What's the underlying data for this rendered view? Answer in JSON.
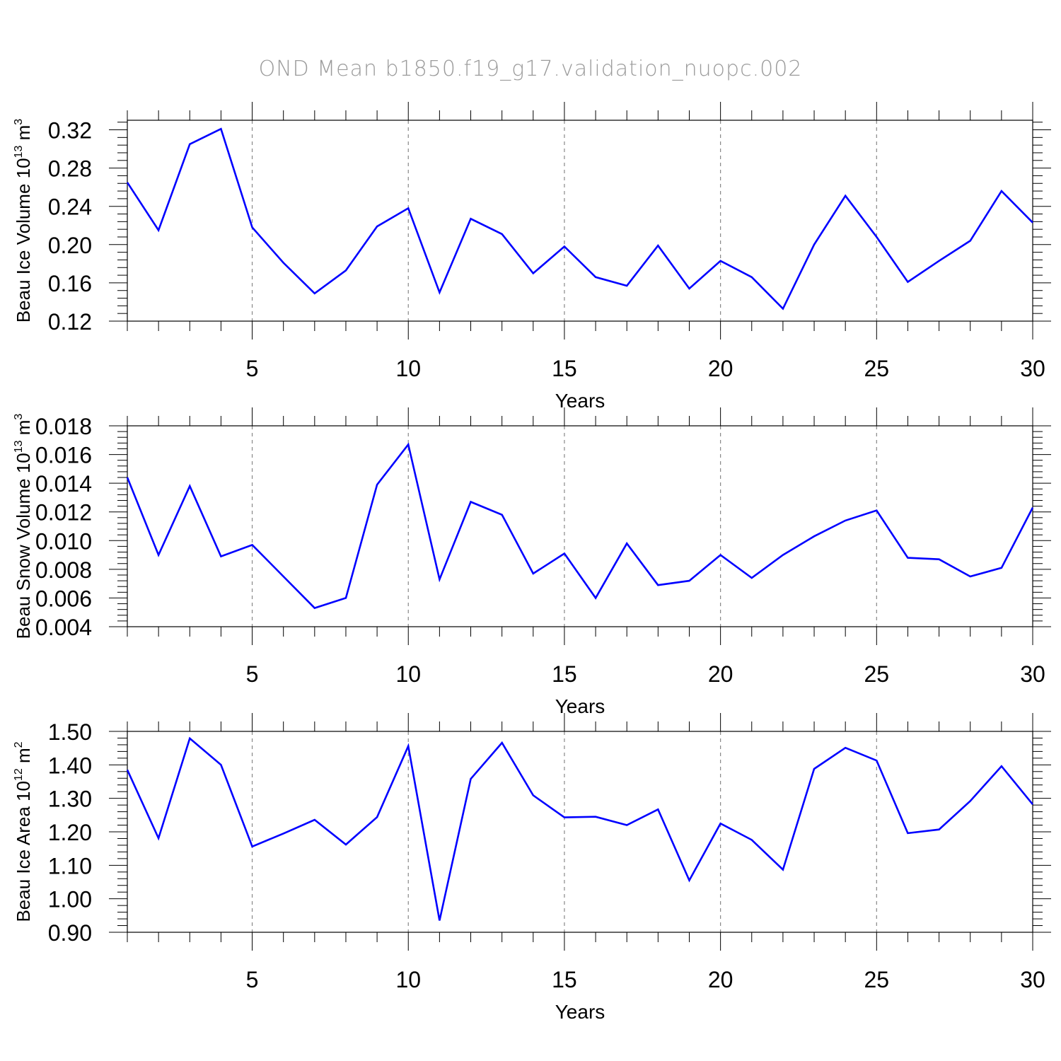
{
  "title": "OND Mean b1850.f19_g17.validation_nuopc.002",
  "chart_data": [
    {
      "type": "line",
      "ylabel": {
        "base": "Beau Ice Volume 10",
        "exp": "13",
        "unit": " m",
        "unit_exp": "3"
      },
      "xlabel": "Years",
      "xlim": [
        1,
        30
      ],
      "ylim": [
        0.12,
        0.33
      ],
      "xticks": [
        "5",
        "10",
        "15",
        "20",
        "25",
        "30"
      ],
      "yticks": [
        "0.12",
        "0.16",
        "0.20",
        "0.24",
        "0.28",
        "0.32"
      ],
      "ytick_values": [
        0.12,
        0.16,
        0.2,
        0.24,
        0.28,
        0.32
      ],
      "x": [
        1,
        2,
        3,
        4,
        5,
        6,
        7,
        8,
        9,
        10,
        11,
        12,
        13,
        14,
        15,
        16,
        17,
        18,
        19,
        20,
        21,
        22,
        23,
        24,
        25,
        26,
        27,
        28,
        29,
        30
      ],
      "series": [
        {
          "values": [
            0.265,
            0.215,
            0.305,
            0.321,
            0.218,
            0.181,
            0.149,
            0.173,
            0.219,
            0.238,
            0.15,
            0.227,
            0.211,
            0.17,
            0.198,
            0.166,
            0.157,
            0.199,
            0.154,
            0.183,
            0.166,
            0.133,
            0.2,
            0.251,
            0.208,
            0.161,
            0.183,
            0.204,
            0.256,
            0.223
          ],
          "color": "#0000ff"
        }
      ],
      "grid": "dashed vertical lines at labeled x ticks"
    },
    {
      "type": "line",
      "ylabel": {
        "base": "Beau Snow Volume 10",
        "exp": "13",
        "unit": " m",
        "unit_exp": "3"
      },
      "xlabel": "Years",
      "xlim": [
        1,
        30
      ],
      "ylim": [
        0.004,
        0.018
      ],
      "xticks": [
        "5",
        "10",
        "15",
        "20",
        "25",
        "30"
      ],
      "yticks": [
        "0.004",
        "0.006",
        "0.008",
        "0.010",
        "0.012",
        "0.014",
        "0.016",
        "0.018"
      ],
      "ytick_values": [
        0.004,
        0.006,
        0.008,
        0.01,
        0.012,
        0.014,
        0.016,
        0.018
      ],
      "x": [
        1,
        2,
        3,
        4,
        5,
        6,
        7,
        8,
        9,
        10,
        11,
        12,
        13,
        14,
        15,
        16,
        17,
        18,
        19,
        20,
        21,
        22,
        23,
        24,
        25,
        26,
        27,
        28,
        29,
        30
      ],
      "series": [
        {
          "values": [
            0.0144,
            0.009,
            0.0138,
            0.0089,
            0.0097,
            0.0075,
            0.0053,
            0.006,
            0.0139,
            0.0167,
            0.0073,
            0.0127,
            0.0118,
            0.0077,
            0.0091,
            0.006,
            0.0098,
            0.0069,
            0.0072,
            0.009,
            0.0074,
            0.009,
            0.0103,
            0.0114,
            0.0121,
            0.0088,
            0.0087,
            0.0075,
            0.0081,
            0.0123
          ],
          "color": "#0000ff"
        }
      ],
      "grid": "dashed vertical lines at labeled x ticks"
    },
    {
      "type": "line",
      "ylabel": {
        "base": "Beau Ice Area 10",
        "exp": "12",
        "unit": " m",
        "unit_exp": "2"
      },
      "xlabel": "Years",
      "xlim": [
        1,
        30
      ],
      "ylim": [
        0.9,
        1.5
      ],
      "xticks": [
        "5",
        "10",
        "15",
        "20",
        "25",
        "30"
      ],
      "yticks": [
        "0.90",
        "1.00",
        "1.10",
        "1.20",
        "1.30",
        "1.40",
        "1.50"
      ],
      "ytick_values": [
        0.9,
        1.0,
        1.1,
        1.2,
        1.3,
        1.4,
        1.5
      ],
      "x": [
        1,
        2,
        3,
        4,
        5,
        6,
        7,
        8,
        9,
        10,
        11,
        12,
        13,
        14,
        15,
        16,
        17,
        18,
        19,
        20,
        21,
        22,
        23,
        24,
        25,
        26,
        27,
        28,
        29,
        30
      ],
      "series": [
        {
          "values": [
            1.385,
            1.181,
            1.479,
            1.4,
            1.156,
            1.195,
            1.236,
            1.162,
            1.244,
            1.456,
            0.935,
            1.358,
            1.466,
            1.309,
            1.243,
            1.245,
            1.22,
            1.267,
            1.055,
            1.225,
            1.176,
            1.087,
            1.388,
            1.451,
            1.413,
            1.196,
            1.207,
            1.292,
            1.396,
            1.282
          ],
          "color": "#0000ff"
        }
      ],
      "grid": "dashed vertical lines at labeled x ticks"
    }
  ]
}
